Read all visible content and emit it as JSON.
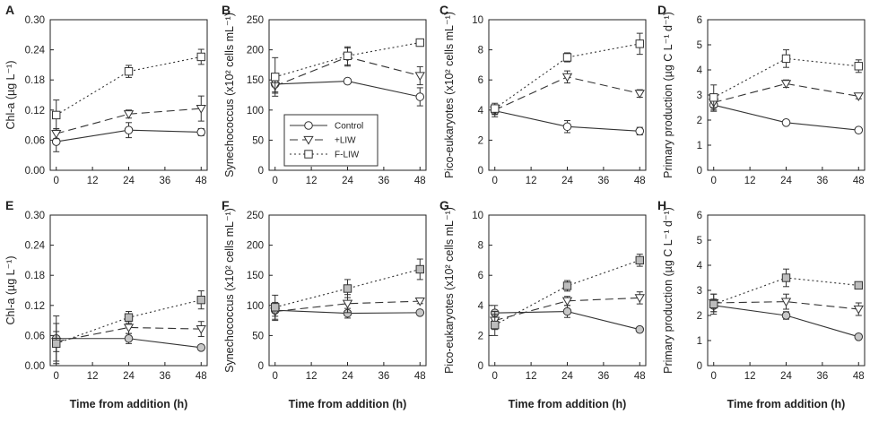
{
  "figure": {
    "series_names": [
      "Control",
      "+LIW",
      "F-LIW"
    ],
    "x_title": "Time from addition (h)"
  },
  "chart_data": [
    {
      "panel": "A",
      "type": "line",
      "ylabel": "Chl-a (µg L⁻¹)",
      "ylim": [
        0,
        0.3
      ],
      "yticks": [
        "0.00",
        "0.06",
        "0.12",
        "0.18",
        "0.24",
        "0.30"
      ],
      "xlim": [
        -2,
        50
      ],
      "xticks": [
        "0",
        "12",
        "24",
        "36",
        "48"
      ],
      "x": [
        0,
        24,
        48
      ],
      "series": [
        {
          "name": "Control",
          "values": [
            0.057,
            0.08,
            0.076
          ],
          "err": [
            0.02,
            0.015,
            0.007
          ]
        },
        {
          "name": "+LIW",
          "values": [
            0.073,
            0.112,
            0.123
          ],
          "err": [
            0.01,
            0.008,
            0.025
          ]
        },
        {
          "name": "F-LIW",
          "values": [
            0.11,
            0.197,
            0.226
          ],
          "err": [
            0.03,
            0.012,
            0.015
          ]
        }
      ]
    },
    {
      "panel": "B",
      "type": "line",
      "ylabel": "Synechococcus (x10² cells mL⁻¹)",
      "ylim": [
        0,
        250
      ],
      "yticks": [
        "0",
        "50",
        "100",
        "150",
        "200",
        "250"
      ],
      "xlim": [
        -2,
        50
      ],
      "xticks": [
        "0",
        "12",
        "24",
        "36",
        "48"
      ],
      "x": [
        0,
        24,
        48
      ],
      "series": [
        {
          "name": "Control",
          "values": [
            143,
            148,
            122
          ],
          "err": [
            15,
            0,
            15
          ]
        },
        {
          "name": "+LIW",
          "values": [
            140,
            188,
            157
          ],
          "err": [
            10,
            15,
            15
          ]
        },
        {
          "name": "F-LIW",
          "values": [
            155,
            190,
            212
          ],
          "err": [
            32,
            15,
            6
          ]
        }
      ]
    },
    {
      "panel": "C",
      "type": "line",
      "ylabel": "Pico-eukaryotes (x10² cells mL⁻¹)",
      "ylim": [
        0,
        10
      ],
      "yticks": [
        "0",
        "2",
        "4",
        "6",
        "8",
        "10"
      ],
      "xlim": [
        -2,
        50
      ],
      "xticks": [
        "0",
        "12",
        "24",
        "36",
        "48"
      ],
      "x": [
        0,
        24,
        48
      ],
      "series": [
        {
          "name": "Control",
          "values": [
            3.95,
            2.9,
            2.6
          ],
          "err": [
            0.4,
            0.4,
            0.25
          ]
        },
        {
          "name": "+LIW",
          "values": [
            4.0,
            6.2,
            5.1
          ],
          "err": [
            0.3,
            0.4,
            0.25
          ]
        },
        {
          "name": "F-LIW",
          "values": [
            4.1,
            7.5,
            8.4
          ],
          "err": [
            0.35,
            0.3,
            0.7
          ]
        }
      ]
    },
    {
      "panel": "D",
      "type": "line",
      "ylabel": "Primary production (µg C L⁻¹ d⁻¹)",
      "ylim": [
        0,
        6
      ],
      "yticks": [
        "0",
        "1",
        "2",
        "3",
        "4",
        "5",
        "6"
      ],
      "xlim": [
        -2,
        50
      ],
      "xticks": [
        "0",
        "12",
        "24",
        "36",
        "48"
      ],
      "x": [
        0,
        24,
        48
      ],
      "series": [
        {
          "name": "Control",
          "values": [
            2.6,
            1.9,
            1.6
          ],
          "err": [
            0.25,
            0.05,
            0.05
          ]
        },
        {
          "name": "+LIW",
          "values": [
            2.7,
            3.45,
            2.95
          ],
          "err": [
            0.2,
            0.15,
            0.1
          ]
        },
        {
          "name": "F-LIW",
          "values": [
            2.9,
            4.45,
            4.15
          ],
          "err": [
            0.5,
            0.35,
            0.25
          ]
        }
      ]
    },
    {
      "panel": "E",
      "type": "line",
      "ylabel": "Chl-a (µg L⁻¹)",
      "ylim": [
        0,
        0.3
      ],
      "yticks": [
        "0.00",
        "0.06",
        "0.12",
        "0.18",
        "0.24",
        "0.30"
      ],
      "xlim": [
        -2,
        50
      ],
      "xticks": [
        "0",
        "12",
        "24",
        "36",
        "48"
      ],
      "x": [
        0,
        24,
        48
      ],
      "series": [
        {
          "name": "Control",
          "values": [
            0.054,
            0.054,
            0.036
          ],
          "err": [
            0.045,
            0.01,
            0.005
          ]
        },
        {
          "name": "+LIW",
          "values": [
            0.048,
            0.076,
            0.073
          ],
          "err": [
            0.02,
            0.012,
            0.015
          ]
        },
        {
          "name": "F-LIW",
          "values": [
            0.044,
            0.096,
            0.131
          ],
          "err": [
            0.04,
            0.012,
            0.018
          ]
        }
      ]
    },
    {
      "panel": "F",
      "type": "line",
      "ylabel": "Synechococcus (x10² cells mL⁻¹)",
      "ylim": [
        0,
        250
      ],
      "yticks": [
        "0",
        "50",
        "100",
        "150",
        "200",
        "250"
      ],
      "xlim": [
        -2,
        50
      ],
      "xticks": [
        "0",
        "12",
        "24",
        "36",
        "48"
      ],
      "x": [
        0,
        24,
        48
      ],
      "series": [
        {
          "name": "Control",
          "values": [
            92,
            87,
            88
          ],
          "err": [
            10,
            8,
            4
          ]
        },
        {
          "name": "+LIW",
          "values": [
            90,
            103,
            107
          ],
          "err": [
            15,
            15,
            4
          ]
        },
        {
          "name": "F-LIW",
          "values": [
            97,
            128,
            160
          ],
          "err": [
            20,
            15,
            17
          ]
        }
      ]
    },
    {
      "panel": "G",
      "type": "line",
      "ylabel": "Pico-eukaryotes (x10² cells mL⁻¹)",
      "ylim": [
        0,
        10
      ],
      "yticks": [
        "0",
        "2",
        "4",
        "6",
        "8",
        "10"
      ],
      "xlim": [
        -2,
        50
      ],
      "xticks": [
        "0",
        "12",
        "24",
        "36",
        "48"
      ],
      "x": [
        0,
        24,
        48
      ],
      "series": [
        {
          "name": "Control",
          "values": [
            3.5,
            3.6,
            2.4
          ],
          "err": [
            0.5,
            0.4,
            0.1
          ]
        },
        {
          "name": "+LIW",
          "values": [
            3.0,
            4.3,
            4.5
          ],
          "err": [
            0.6,
            0.3,
            0.4
          ]
        },
        {
          "name": "F-LIW",
          "values": [
            2.7,
            5.3,
            7.0
          ],
          "err": [
            0.7,
            0.35,
            0.4
          ]
        }
      ]
    },
    {
      "panel": "H",
      "type": "line",
      "ylabel": "Primary production (µg C L⁻¹ d⁻¹)",
      "ylim": [
        0,
        6
      ],
      "yticks": [
        "0",
        "1",
        "2",
        "3",
        "4",
        "5",
        "6"
      ],
      "xlim": [
        -2,
        50
      ],
      "xticks": [
        "0",
        "12",
        "24",
        "36",
        "48"
      ],
      "x": [
        0,
        24,
        48
      ],
      "series": [
        {
          "name": "Control",
          "values": [
            2.4,
            2.0,
            1.15
          ],
          "err": [
            0.25,
            0.15,
            0.05
          ]
        },
        {
          "name": "+LIW",
          "values": [
            2.5,
            2.55,
            2.25
          ],
          "err": [
            0.35,
            0.3,
            0.25
          ]
        },
        {
          "name": "F-LIW",
          "values": [
            2.45,
            3.5,
            3.2
          ],
          "err": [
            0.4,
            0.35,
            0.1
          ]
        }
      ]
    }
  ]
}
